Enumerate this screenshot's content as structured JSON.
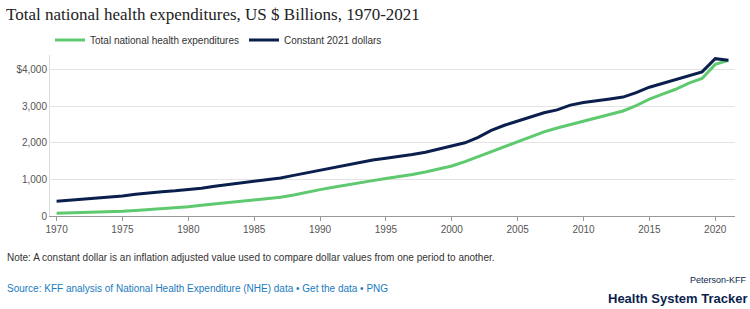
{
  "chart_data": {
    "type": "line",
    "title": "Total national health expenditures, US $ Billions, 1970-2021",
    "x": [
      1970,
      1971,
      1972,
      1973,
      1974,
      1975,
      1976,
      1977,
      1978,
      1979,
      1980,
      1981,
      1982,
      1983,
      1984,
      1985,
      1986,
      1987,
      1988,
      1989,
      1990,
      1991,
      1992,
      1993,
      1994,
      1995,
      1996,
      1997,
      1998,
      1999,
      2000,
      2001,
      2002,
      2003,
      2004,
      2005,
      2006,
      2007,
      2008,
      2009,
      2010,
      2011,
      2012,
      2013,
      2014,
      2015,
      2016,
      2017,
      2018,
      2019,
      2020,
      2021
    ],
    "series": [
      {
        "name": "Total national health expenditures",
        "color": "#5ec96f",
        "values": [
          74,
          82,
          92,
          103,
          117,
          133,
          153,
          174,
          195,
          222,
          253,
          294,
          331,
          365,
          403,
          439,
          473,
          513,
          575,
          639,
          720,
          788,
          854,
          917,
          967,
          1022,
          1074,
          1136,
          1202,
          1276,
          1366,
          1484,
          1617,
          1766,
          1896,
          2029,
          2165,
          2299,
          2403,
          2496,
          2596,
          2687,
          2795,
          2871,
          3018,
          3193,
          3333,
          3464,
          3630,
          3757,
          4144,
          4255
        ]
      },
      {
        "name": "Constant 2021 dollars",
        "color": "#0b1f4e",
        "values": [
          405,
          430,
          465,
          490,
          510,
          545,
          595,
          635,
          665,
          690,
          715,
          760,
          810,
          855,
          900,
          950,
          990,
          1040,
          1110,
          1180,
          1270,
          1340,
          1410,
          1480,
          1530,
          1580,
          1625,
          1680,
          1740,
          1820,
          1900,
          2000,
          2150,
          2340,
          2480,
          2600,
          2700,
          2820,
          2900,
          3030,
          3100,
          3140,
          3200,
          3250,
          3370,
          3520,
          3620,
          3720,
          3820,
          3940,
          4300,
          4255
        ]
      }
    ],
    "xlim": [
      1969.5,
      2021.5
    ],
    "xticks": [
      1970,
      1975,
      1980,
      1985,
      1990,
      1995,
      2000,
      2005,
      2010,
      2015,
      2020
    ],
    "ylim": [
      0,
      4400
    ],
    "yticks": [
      0,
      {
        "value": 1000,
        "label": "1,000"
      },
      {
        "value": 2000,
        "label": "2,000"
      },
      {
        "value": 3000,
        "label": "3,000"
      },
      {
        "value": 4000,
        "label": "$4,000"
      }
    ],
    "grid": true,
    "legend": "top-left",
    "annotations": [
      "Note: A constant dollar is an inflation adjusted value used to compare dollar values from one period to another.",
      "Source: KFF analysis of National Health Expenditure (NHE) data • Get the data • PNG",
      "Peterson-KFF",
      "Health System Tracker"
    ]
  }
}
